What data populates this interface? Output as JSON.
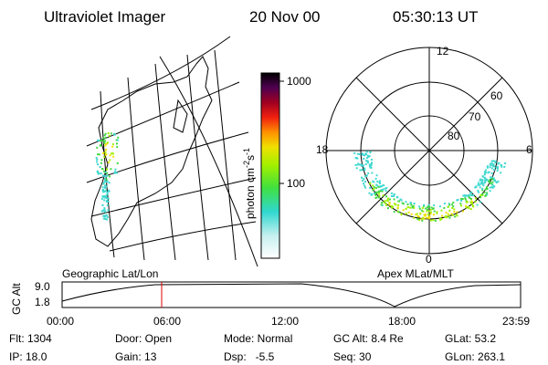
{
  "header": {
    "instrument": "Ultraviolet Imager",
    "date": "20 Nov 00",
    "time": "05:30:13 UT"
  },
  "colorbar": {
    "unit": "photon cm",
    "exp1": "-2",
    "unit2": "s",
    "exp2": "-1",
    "ticks": [
      "1000",
      "100"
    ]
  },
  "polar": {
    "mlt_top": "12",
    "mlt_right": "6",
    "mlt_bottom": "0",
    "mlt_left": "18",
    "lat_labels": [
      "60",
      "70",
      "80"
    ]
  },
  "panels": {
    "left_caption": "Geographic Lat/Lon",
    "right_caption": "Apex MLat/MLT"
  },
  "altitude_plot": {
    "ylabel": "GC Alt",
    "yticks": [
      "9.0",
      "1.8"
    ],
    "xticks": [
      "00:00",
      "06:00",
      "12:00",
      "18:00",
      "23:59"
    ]
  },
  "info": {
    "rows": [
      [
        "Flt: 1304",
        "Door: Open",
        "Mode: Normal",
        "GC Alt: 8.4 Re",
        "GLat: 53.2"
      ],
      [
        "IP: 18.0",
        "Gain: 13",
        "Dsp:   -5.5",
        "Seq: 30",
        "GLon: 263.1"
      ]
    ]
  }
}
